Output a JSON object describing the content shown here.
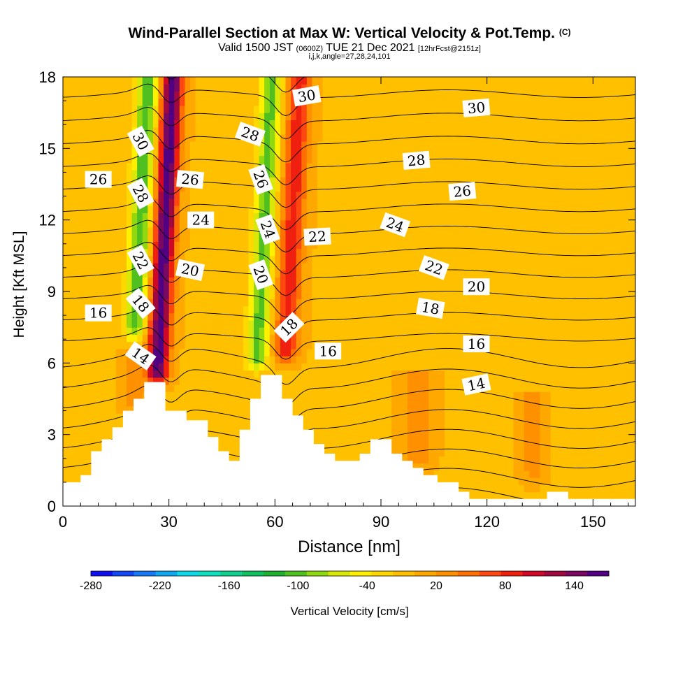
{
  "chart_data": {
    "type": "heatmap",
    "title": "Wind-Parallel Section at Max W: Vertical Velocity & Pot.Temp.",
    "title_suffix": "(C)",
    "subtitle_a": "Valid 1500 JST",
    "subtitle_b": "(0600Z)",
    "subtitle_c": "TUE 21 Dec 2021",
    "subtitle_d": "[12hrFcst@2151z]",
    "subtitle2": "i,j,k,angle=27,28,24,101",
    "xlabel": "Distance [nm]",
    "ylabel": "Height [Kft MSL]",
    "xlim": [
      0,
      162
    ],
    "ylim": [
      0,
      18
    ],
    "xticks": [
      "0",
      "30",
      "60",
      "90",
      "120",
      "150"
    ],
    "yticks": [
      "0",
      "3",
      "6",
      "9",
      "12",
      "15",
      "18"
    ],
    "colorbar_label": "Vertical Velocity [cm/s]",
    "colorbar_ticks": [
      "-280",
      "-220",
      "-160",
      "-100",
      "-40",
      "20",
      "80",
      "140"
    ],
    "colorbar_range": [
      -280,
      170
    ],
    "colorbar_colors": [
      "#1010f0",
      "#1448f5",
      "#1878f5",
      "#10a8f0",
      "#10d8e8",
      "#10e0c0",
      "#10d090",
      "#10c060",
      "#20b030",
      "#50c020",
      "#90d810",
      "#d8e808",
      "#fff000",
      "#ffd800",
      "#ffc000",
      "#ffa800",
      "#ff9000",
      "#ff7000",
      "#ff4810",
      "#f02010",
      "#d00828",
      "#a00840",
      "#780860",
      "#500080"
    ],
    "background_value": 0,
    "terrain_profile": [
      [
        0,
        1
      ],
      [
        5,
        1
      ],
      [
        5,
        1.3
      ],
      [
        8,
        1.3
      ],
      [
        8,
        2.3
      ],
      [
        11,
        2.3
      ],
      [
        11,
        2.8
      ],
      [
        14,
        2.8
      ],
      [
        14,
        3.3
      ],
      [
        17,
        3.3
      ],
      [
        17,
        4
      ],
      [
        20,
        4
      ],
      [
        20,
        4.5
      ],
      [
        23,
        4.5
      ],
      [
        23,
        5.2
      ],
      [
        29,
        5.2
      ],
      [
        29,
        4
      ],
      [
        35,
        4
      ],
      [
        35,
        3.6
      ],
      [
        41,
        3.6
      ],
      [
        41,
        2.9
      ],
      [
        44,
        2.9
      ],
      [
        44,
        2.3
      ],
      [
        47,
        2.3
      ],
      [
        47,
        1.9
      ],
      [
        50,
        1.9
      ],
      [
        50,
        3.2
      ],
      [
        53,
        3.2
      ],
      [
        53,
        4.5
      ],
      [
        56,
        4.5
      ],
      [
        56,
        5.5
      ],
      [
        62,
        5.5
      ],
      [
        62,
        4.5
      ],
      [
        65,
        4.5
      ],
      [
        65,
        3.8
      ],
      [
        68,
        3.8
      ],
      [
        68,
        3.2
      ],
      [
        71,
        3.2
      ],
      [
        71,
        2.6
      ],
      [
        74,
        2.6
      ],
      [
        74,
        2.2
      ],
      [
        77,
        2.2
      ],
      [
        77,
        1.9
      ],
      [
        84,
        1.9
      ],
      [
        84,
        2.2
      ],
      [
        87,
        2.2
      ],
      [
        87,
        2.8
      ],
      [
        93,
        2.8
      ],
      [
        93,
        2.2
      ],
      [
        96,
        2.2
      ],
      [
        96,
        1.9
      ],
      [
        99,
        1.9
      ],
      [
        99,
        1.6
      ],
      [
        102,
        1.6
      ],
      [
        102,
        1.3
      ],
      [
        106,
        1.3
      ],
      [
        106,
        1
      ],
      [
        112,
        1
      ],
      [
        112,
        0.6
      ],
      [
        115,
        0.6
      ],
      [
        115,
        0.3
      ],
      [
        137,
        0.3
      ],
      [
        137,
        0.6
      ],
      [
        143,
        0.6
      ],
      [
        143,
        0.3
      ],
      [
        162,
        0.3
      ]
    ],
    "velocity_features": [
      {
        "x": 29,
        "y_top": 18,
        "y_bottom": 5.6,
        "slope": -0.9,
        "width": 3.0,
        "peak": 165
      },
      {
        "x": 22,
        "y_top": 18,
        "y_bottom": 7.5,
        "slope": -0.85,
        "width": 3.0,
        "peak": -110
      },
      {
        "x": 65,
        "y_top": 18,
        "y_bottom": 6.5,
        "slope": -0.75,
        "width": 3.2,
        "peak": 90
      },
      {
        "x": 57,
        "y_top": 18,
        "y_bottom": 6.2,
        "slope": -0.7,
        "width": 3.0,
        "peak": -100
      },
      {
        "x": 100,
        "y_top": 5.2,
        "y_bottom": 2.0,
        "slope": 0,
        "width": 4,
        "peak": 35
      },
      {
        "x": 133,
        "y_top": 4.2,
        "y_bottom": 1.5,
        "slope": 0,
        "width": 3,
        "peak": 32
      },
      {
        "x": 20,
        "y_top": 6.0,
        "y_bottom": 4.5,
        "slope": 0,
        "width": 3,
        "peak": 35
      }
    ],
    "isentrope_levels": [
      10,
      11,
      12,
      13,
      14,
      15,
      16,
      17,
      18,
      19,
      20,
      21,
      22,
      23,
      24,
      25,
      26,
      27,
      28,
      29,
      30,
      31,
      32,
      33
    ],
    "isentrope_labels": [
      {
        "text": "30",
        "x": 22,
        "y": 15.3,
        "angle": 62
      },
      {
        "text": "28",
        "x": 22,
        "y": 13.1,
        "angle": 62
      },
      {
        "text": "26",
        "x": 10,
        "y": 13.7,
        "angle": 0
      },
      {
        "text": "22",
        "x": 22,
        "y": 10.3,
        "angle": 62
      },
      {
        "text": "18",
        "x": 22,
        "y": 8.5,
        "angle": 50
      },
      {
        "text": "16",
        "x": 10,
        "y": 8.1,
        "angle": 0
      },
      {
        "text": "14",
        "x": 22,
        "y": 6.3,
        "angle": 35
      },
      {
        "text": "26",
        "x": 36,
        "y": 13.7,
        "angle": 5
      },
      {
        "text": "24",
        "x": 39,
        "y": 12.0,
        "angle": 0
      },
      {
        "text": "20",
        "x": 36,
        "y": 9.9,
        "angle": 12
      },
      {
        "text": "28",
        "x": 53,
        "y": 15.6,
        "angle": 20
      },
      {
        "text": "26",
        "x": 56,
        "y": 13.7,
        "angle": 70
      },
      {
        "text": "24",
        "x": 58,
        "y": 11.6,
        "angle": 70
      },
      {
        "text": "20",
        "x": 56,
        "y": 9.7,
        "angle": 70
      },
      {
        "text": "18",
        "x": 64,
        "y": 7.5,
        "angle": -45
      },
      {
        "text": "30",
        "x": 69,
        "y": 17.2,
        "angle": -10
      },
      {
        "text": "22",
        "x": 72,
        "y": 11.3,
        "angle": -3
      },
      {
        "text": "16",
        "x": 75,
        "y": 6.5,
        "angle": 0
      },
      {
        "text": "28",
        "x": 100,
        "y": 14.5,
        "angle": -5
      },
      {
        "text": "24",
        "x": 94,
        "y": 11.8,
        "angle": 20
      },
      {
        "text": "22",
        "x": 105,
        "y": 10.0,
        "angle": 20
      },
      {
        "text": "18",
        "x": 104,
        "y": 8.3,
        "angle": 10
      },
      {
        "text": "26",
        "x": 113,
        "y": 13.2,
        "angle": -5
      },
      {
        "text": "30",
        "x": 117,
        "y": 16.7,
        "angle": -5
      },
      {
        "text": "20",
        "x": 117,
        "y": 9.2,
        "angle": 0
      },
      {
        "text": "16",
        "x": 117,
        "y": 6.8,
        "angle": 0
      },
      {
        "text": "14",
        "x": 117,
        "y": 5.1,
        "angle": -12
      }
    ]
  }
}
